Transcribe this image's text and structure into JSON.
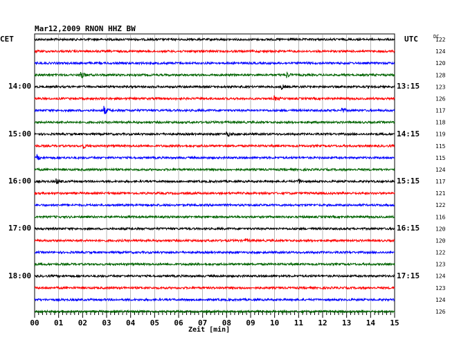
{
  "chart_data": {
    "type": "line",
    "title": "Mar12,2009   RNON HHZ BW",
    "left_timezone": "CET",
    "right_timezone": "UTC",
    "offset_header": "DC",
    "xlabel": "Zeit [min]",
    "xlim": [
      0,
      15
    ],
    "x_ticks": [
      "00",
      "01",
      "02",
      "03",
      "04",
      "05",
      "06",
      "07",
      "08",
      "09",
      "10",
      "11",
      "12",
      "13",
      "14",
      "15"
    ],
    "grid": true,
    "trace_interval_min": 15,
    "left_hour_labels": [
      {
        "row": 4,
        "label": "14:00"
      },
      {
        "row": 8,
        "label": "15:00"
      },
      {
        "row": 12,
        "label": "16:00"
      },
      {
        "row": 16,
        "label": "17:00"
      },
      {
        "row": 20,
        "label": "18:00"
      }
    ],
    "right_hour_labels": [
      {
        "row": 4,
        "label": "13:15"
      },
      {
        "row": 8,
        "label": "14:15"
      },
      {
        "row": 12,
        "label": "15:15"
      },
      {
        "row": 16,
        "label": "16:15"
      },
      {
        "row": 20,
        "label": "17:15"
      }
    ],
    "trace_colors": [
      "#000000",
      "#ff0000",
      "#0000ff",
      "#006400"
    ],
    "dc_offsets": [
      "122",
      "124",
      "120",
      "128",
      "123",
      "126",
      "117",
      "118",
      "119",
      "115",
      "115",
      "124",
      "117",
      "121",
      "122",
      "116",
      "120",
      "120",
      "122",
      "123",
      "124",
      "123",
      "124",
      "126"
    ],
    "events": [
      {
        "row": 3,
        "minute": 1.9,
        "amplitude": 9
      },
      {
        "row": 3,
        "minute": 10.5,
        "amplitude": 4
      },
      {
        "row": 4,
        "minute": 10.3,
        "amplitude": 3
      },
      {
        "row": 5,
        "minute": 10.0,
        "amplitude": 3
      },
      {
        "row": 6,
        "minute": 2.9,
        "amplitude": 6
      },
      {
        "row": 6,
        "minute": 12.8,
        "amplitude": 4
      },
      {
        "row": 8,
        "minute": 8.0,
        "amplitude": 4
      },
      {
        "row": 9,
        "minute": 2.0,
        "amplitude": 4
      },
      {
        "row": 10,
        "minute": 0.1,
        "amplitude": 4
      },
      {
        "row": 12,
        "minute": 0.9,
        "amplitude": 4
      },
      {
        "row": 12,
        "minute": 11.0,
        "amplitude": 3
      },
      {
        "row": 17,
        "minute": 8.8,
        "amplitude": 2
      }
    ]
  }
}
